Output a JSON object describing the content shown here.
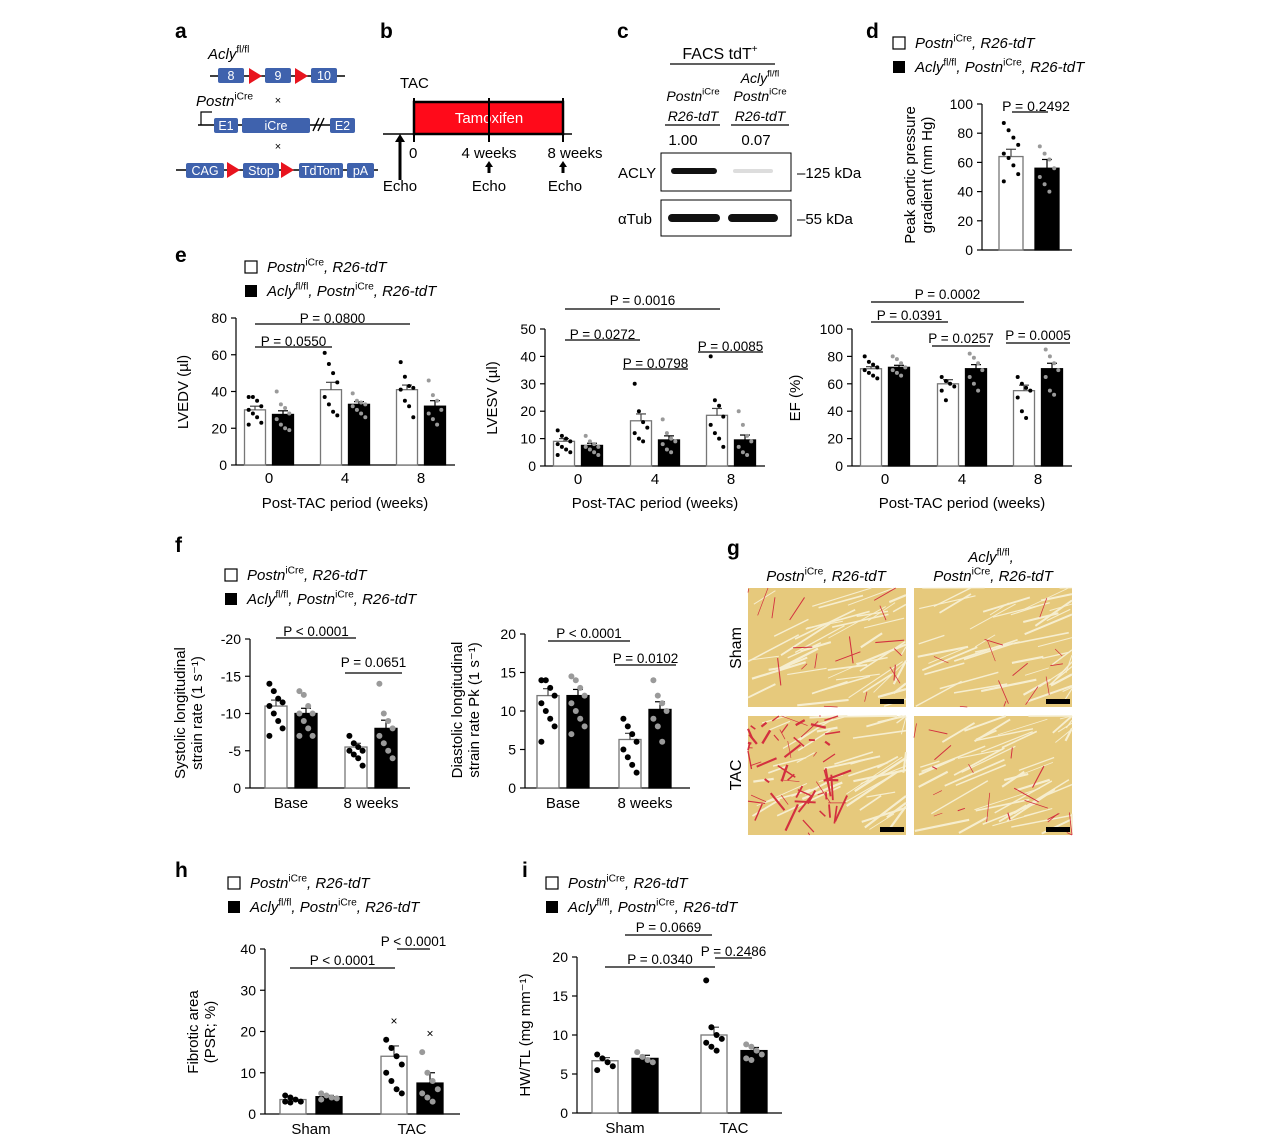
{
  "panel_labels": [
    "a",
    "b",
    "c",
    "d",
    "e",
    "f",
    "g",
    "h",
    "i"
  ],
  "genotypes": {
    "wt": [
      {
        "t": "Postn",
        "i": true
      },
      {
        "t": "iCre",
        "sup": true
      },
      {
        "t": ", R26-tdT",
        "i": true
      }
    ],
    "ko": [
      {
        "t": "Acly",
        "i": true
      },
      {
        "t": "fl/fl",
        "sup": true
      },
      {
        "t": ", ",
        "i": true
      },
      {
        "t": "Postn",
        "i": true
      },
      {
        "t": "iCre",
        "sup": true
      },
      {
        "t": ", R26-tdT",
        "i": true
      }
    ]
  },
  "colors": {
    "wt_bar": "#ffffff",
    "ko_bar": "#000000",
    "ko_points": "#9a9a9a",
    "exon": "#3f62ad",
    "loxp": "#e8141e",
    "tamoxifen": "#ff0a1a"
  },
  "panel_a": {
    "acly_label": [
      {
        "t": "Acly",
        "i": true
      },
      {
        "t": "fl/fl",
        "sup": true
      }
    ],
    "acly_exons": [
      "8",
      "9",
      "10"
    ],
    "postn_label": [
      {
        "t": "Postn",
        "i": true
      },
      {
        "t": "iCre",
        "sup": true
      }
    ],
    "postn_boxes": [
      "E1",
      "iCre",
      "E2"
    ],
    "cross": "×",
    "reporter_boxes": [
      "CAG",
      "Stop",
      "TdTom",
      "pA"
    ]
  },
  "panel_b": {
    "tac": "TAC",
    "tamoxifen": "Tamoxifen",
    "times": [
      "0",
      "4 weeks",
      "8 weeks"
    ],
    "echo": "Echo"
  },
  "panel_c": {
    "header": "FACS tdT",
    "header_sup": "+",
    "col1": [
      {
        "t": "Postn",
        "i": true
      },
      {
        "t": "iCre",
        "sup": true
      }
    ],
    "col1_b": "R26-tdT",
    "col2_a": [
      {
        "t": "Acly",
        "i": true
      },
      {
        "t": "fl/fl",
        "sup": true
      }
    ],
    "col2": [
      {
        "t": "Postn",
        "i": true
      },
      {
        "t": "iCre",
        "sup": true
      }
    ],
    "col2_b": "R26-tdT",
    "quant": [
      "1.00",
      "0.07"
    ],
    "rows": [
      {
        "label": "ACLY",
        "size": "–125 kDa"
      },
      {
        "label": "αTub",
        "size": "–55 kDa"
      }
    ]
  },
  "panel_g": {
    "col_headers": [
      "wt",
      "ko"
    ],
    "rows": [
      "Sham",
      "TAC"
    ]
  },
  "chart_data": [
    {
      "id": "d",
      "type": "bar",
      "ylabel": [
        "Peak aortic pressure",
        "gradient (mm Hg)"
      ],
      "ylim": [
        0,
        100
      ],
      "yticks": [
        0,
        20,
        40,
        60,
        80,
        100
      ],
      "categories": [
        ""
      ],
      "series": [
        {
          "key": "wt",
          "values": [
            64
          ],
          "sem": [
            5
          ],
          "points": [
            [
              87,
              82,
              77,
              72,
              66,
              63,
              58,
              52,
              47
            ]
          ]
        },
        {
          "key": "ko",
          "values": [
            56
          ],
          "sem": [
            6
          ],
          "points": [
            [
              71,
              66,
              62,
              56,
              50,
              45,
              40
            ]
          ]
        }
      ],
      "pvalues": [
        {
          "label": "P = 0.2492",
          "from": [
            0,
            0
          ],
          "to": [
            0,
            1
          ]
        }
      ]
    },
    {
      "id": "e1",
      "type": "bar",
      "ylabel": [
        "LVEDV (µl)"
      ],
      "xlabel": "Post-TAC period (weeks)",
      "ylim": [
        0,
        80
      ],
      "yticks": [
        0,
        20,
        40,
        60,
        80
      ],
      "categories": [
        "0",
        "4",
        "8"
      ],
      "series": [
        {
          "key": "wt",
          "values": [
            30,
            41,
            41
          ],
          "sem": [
            2,
            4,
            2.5
          ],
          "points": [
            [
              37,
              37,
              35,
              32,
              30,
              28,
              26,
              23,
              22
            ],
            [
              61,
              55,
              50,
              45,
              37,
              33,
              29,
              27
            ],
            [
              56,
              48,
              43,
              42,
              41,
              35,
              32,
              26
            ]
          ]
        },
        {
          "key": "ko",
          "values": [
            27.5,
            33,
            32
          ],
          "sem": [
            2,
            1.5,
            3
          ],
          "points": [
            [
              40,
              33,
              31,
              28,
              25,
              22,
              20,
              19
            ],
            [
              39,
              35,
              34,
              33,
              32,
              30,
              28,
              26
            ],
            [
              46,
              38,
              35,
              30,
              28,
              25,
              22
            ]
          ]
        }
      ],
      "pvalues": [
        {
          "label": "P = 0.0800",
          "from": [
            0,
            0
          ],
          "to": [
            2,
            0
          ]
        },
        {
          "label": "P = 0.0550",
          "from": [
            0,
            0
          ],
          "to": [
            1,
            0
          ]
        }
      ]
    },
    {
      "id": "e2",
      "type": "bar",
      "ylabel": [
        "LVESV (µl)"
      ],
      "xlabel": "Post-TAC period (weeks)",
      "ylim": [
        0,
        50
      ],
      "yticks": [
        0,
        10,
        20,
        30,
        40,
        50
      ],
      "categories": [
        "0",
        "4",
        "8"
      ],
      "series": [
        {
          "key": "wt",
          "values": [
            9,
            16.5,
            18.5
          ],
          "sem": [
            1,
            2.5,
            2.5
          ],
          "points": [
            [
              13,
              11,
              10,
              9,
              8,
              7,
              6,
              5,
              4
            ],
            [
              30,
              20,
              16,
              14,
              12,
              10,
              9
            ],
            [
              40,
              24,
              22,
              18,
              15,
              12,
              10,
              7
            ]
          ]
        },
        {
          "key": "ko",
          "values": [
            7.5,
            9.5,
            9.5
          ],
          "sem": [
            0.8,
            1.5,
            1.8
          ],
          "points": [
            [
              11,
              9,
              8,
              7,
              7,
              6,
              5,
              4
            ],
            [
              17,
              12,
              10,
              9,
              8,
              6,
              5
            ],
            [
              20,
              15,
              11,
              9,
              7,
              5,
              4
            ]
          ]
        }
      ],
      "pvalues": [
        {
          "label": "P = 0.0016",
          "from": [
            0,
            0
          ],
          "to": [
            2,
            0
          ]
        },
        {
          "label": "P = 0.0272",
          "from": [
            0,
            0
          ],
          "to": [
            1,
            0
          ]
        },
        {
          "label": "P = 0.0798",
          "from": [
            1,
            0
          ],
          "to": [
            1,
            1
          ]
        },
        {
          "label": "P = 0.0085",
          "from": [
            2,
            0
          ],
          "to": [
            2,
            1
          ]
        }
      ]
    },
    {
      "id": "e3",
      "type": "bar",
      "ylabel": [
        "EF (%)"
      ],
      "xlabel": "Post-TAC period (weeks)",
      "ylim": [
        0,
        100
      ],
      "yticks": [
        0,
        20,
        40,
        60,
        80,
        100
      ],
      "categories": [
        "0",
        "4",
        "8"
      ],
      "series": [
        {
          "key": "wt",
          "values": [
            71,
            60,
            55
          ],
          "sem": [
            1.5,
            3,
            4
          ],
          "points": [
            [
              80,
              76,
              74,
              72,
              70,
              68,
              66,
              64
            ],
            [
              65,
              62,
              60,
              58,
              55,
              48
            ],
            [
              65,
              60,
              57,
              55,
              50,
              40,
              35
            ]
          ]
        },
        {
          "key": "ko",
          "values": [
            72,
            71,
            71
          ],
          "sem": [
            1.5,
            3,
            4
          ],
          "points": [
            [
              80,
              78,
              75,
              72,
              70,
              68,
              66
            ],
            [
              82,
              79,
              75,
              70,
              65,
              60,
              55
            ],
            [
              85,
              80,
              75,
              70,
              65,
              55,
              52
            ]
          ]
        }
      ],
      "pvalues": [
        {
          "label": "P = 0.0002",
          "from": [
            0,
            0
          ],
          "to": [
            2,
            0
          ]
        },
        {
          "label": "P = 0.0391",
          "from": [
            0,
            0
          ],
          "to": [
            1,
            0
          ]
        },
        {
          "label": "P = 0.0257",
          "from": [
            1,
            0
          ],
          "to": [
            1,
            1
          ]
        },
        {
          "label": "P = 0.0005",
          "from": [
            2,
            0
          ],
          "to": [
            2,
            1
          ]
        }
      ]
    },
    {
      "id": "f1",
      "type": "bar",
      "ylabel": [
        "Systolic longitudinal",
        "strain rate (1 s⁻¹)"
      ],
      "ylim": [
        0,
        -20
      ],
      "yticks": [
        0,
        -5,
        -10,
        -15,
        -20
      ],
      "categories": [
        "Base",
        "8 weeks"
      ],
      "series": [
        {
          "key": "wt",
          "values": [
            -11,
            -5.5
          ],
          "sem": [
            0.8,
            0.5
          ],
          "points": [
            [
              -14,
              -13,
              -12,
              -11.5,
              -11,
              -10,
              -9,
              -8,
              -7
            ],
            [
              -7,
              -6,
              -5.5,
              -5,
              -5,
              -4.5,
              -4,
              -3
            ]
          ]
        },
        {
          "key": "ko",
          "values": [
            -10,
            -8
          ],
          "sem": [
            0.7,
            1.1
          ],
          "points": [
            [
              -13,
              -12.5,
              -11,
              -10,
              -10,
              -9,
              -8,
              -7,
              -7
            ],
            [
              -14,
              -10,
              -9,
              -8,
              -7,
              -6,
              -5,
              -4
            ]
          ]
        }
      ],
      "pvalues": [
        {
          "label": "P < 0.0001",
          "from": [
            0,
            0
          ],
          "to": [
            1,
            0
          ]
        },
        {
          "label": "P = 0.0651",
          "from": [
            1,
            0
          ],
          "to": [
            1,
            1
          ]
        }
      ]
    },
    {
      "id": "f2",
      "type": "bar",
      "ylabel": [
        "Diastolic longitudinal",
        "strain rate Pk (1 s⁻¹)"
      ],
      "ylim": [
        0,
        20
      ],
      "yticks": [
        0,
        5,
        10,
        15,
        20
      ],
      "categories": [
        "Base",
        "8 weeks"
      ],
      "series": [
        {
          "key": "wt",
          "values": [
            12,
            6.3
          ],
          "sem": [
            0.9,
            0.8
          ],
          "points": [
            [
              14,
              14,
              13,
              12,
              11,
              10,
              9,
              8,
              6
            ],
            [
              9,
              8,
              7,
              6,
              5,
              4,
              3,
              2
            ]
          ]
        },
        {
          "key": "ko",
          "values": [
            12,
            10.2
          ],
          "sem": [
            0.8,
            1
          ],
          "points": [
            [
              14.5,
              14,
              13,
              12,
              11,
              10,
              9,
              8,
              7
            ],
            [
              14,
              12,
              11,
              10,
              9,
              8,
              6
            ]
          ]
        }
      ],
      "pvalues": [
        {
          "label": "P < 0.0001",
          "from": [
            0,
            0
          ],
          "to": [
            1,
            0
          ]
        },
        {
          "label": "P = 0.0102",
          "from": [
            1,
            0
          ],
          "to": [
            1,
            1
          ]
        }
      ]
    },
    {
      "id": "h",
      "type": "bar",
      "ylabel": [
        "Fibrotic area",
        "(PSR; %)"
      ],
      "ylim": [
        0,
        40
      ],
      "yticks": [
        0,
        10,
        20,
        30,
        40
      ],
      "categories": [
        "Sham",
        "TAC"
      ],
      "series": [
        {
          "key": "wt",
          "values": [
            3.5,
            14
          ],
          "sem": [
            0.3,
            2.5
          ],
          "points": [
            [
              4.5,
              4,
              3.5,
              3,
              3,
              2.8
            ],
            [
              18,
              16,
              14,
              12,
              10,
              8,
              6,
              5
            ]
          ],
          "outliers": [
            [],
            [
              22.5
            ]
          ]
        },
        {
          "key": "ko",
          "values": [
            4.2,
            7.5
          ],
          "sem": [
            0.3,
            2.5
          ],
          "points": [
            [
              5,
              4.5,
              4,
              3.8,
              3.5
            ],
            [
              15,
              10,
              8,
              6,
              5,
              4,
              3
            ]
          ],
          "outliers": [
            [],
            [
              19.5
            ]
          ]
        }
      ],
      "pvalues": [
        {
          "label": "P < 0.0001",
          "from": [
            0,
            0
          ],
          "to": [
            1,
            0
          ]
        },
        {
          "label": "P < 0.0001",
          "from": [
            1,
            0
          ],
          "to": [
            1,
            1
          ]
        }
      ]
    },
    {
      "id": "i",
      "type": "bar",
      "ylabel": [
        "HW/TL (mg mm⁻¹)"
      ],
      "ylim": [
        0,
        20
      ],
      "yticks": [
        0,
        5,
        10,
        15,
        20
      ],
      "categories": [
        "Sham",
        "TAC"
      ],
      "series": [
        {
          "key": "wt",
          "values": [
            6.7,
            10
          ],
          "sem": [
            0.4,
            1
          ],
          "points": [
            [
              7.5,
              7,
              6.5,
              6,
              5.5
            ],
            [
              17,
              11,
              10,
              9.5,
              9,
              8.5,
              8
            ]
          ]
        },
        {
          "key": "ko",
          "values": [
            7,
            8
          ],
          "sem": [
            0.4,
            0.4
          ],
          "points": [
            [
              7.8,
              7.2,
              6.8,
              6.5
            ],
            [
              8.8,
              8.5,
              8,
              7.5,
              7,
              6.8
            ]
          ]
        }
      ],
      "pvalues": [
        {
          "label": "P = 0.0669",
          "from": [
            0,
            0
          ],
          "to": [
            1,
            0
          ]
        },
        {
          "label": "P = 0.0340",
          "from": [
            0,
            0
          ],
          "to": [
            1,
            0
          ]
        },
        {
          "label": "P = 0.2486",
          "from": [
            1,
            0
          ],
          "to": [
            1,
            1
          ]
        }
      ]
    }
  ]
}
